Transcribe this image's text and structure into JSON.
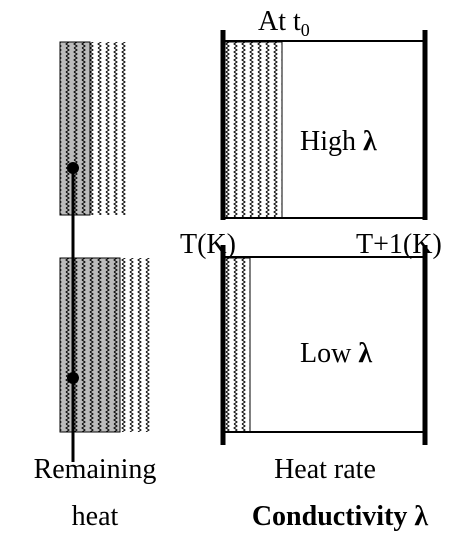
{
  "top_box": {
    "time_label": {
      "text": "At t",
      "subscript": "0"
    },
    "conductivity_label": {
      "text": "High",
      "symbol": "λ"
    }
  },
  "temperature_labels": {
    "left": "T(K)",
    "right": "T+1(K)"
  },
  "bottom_box": {
    "conductivity_label": {
      "text": "Low",
      "symbol": "λ"
    }
  },
  "captions": {
    "remaining_heat": [
      "Remaining",
      "heat"
    ],
    "heat_rate": "Heat rate",
    "conductivity": "Conductivity λ"
  }
}
